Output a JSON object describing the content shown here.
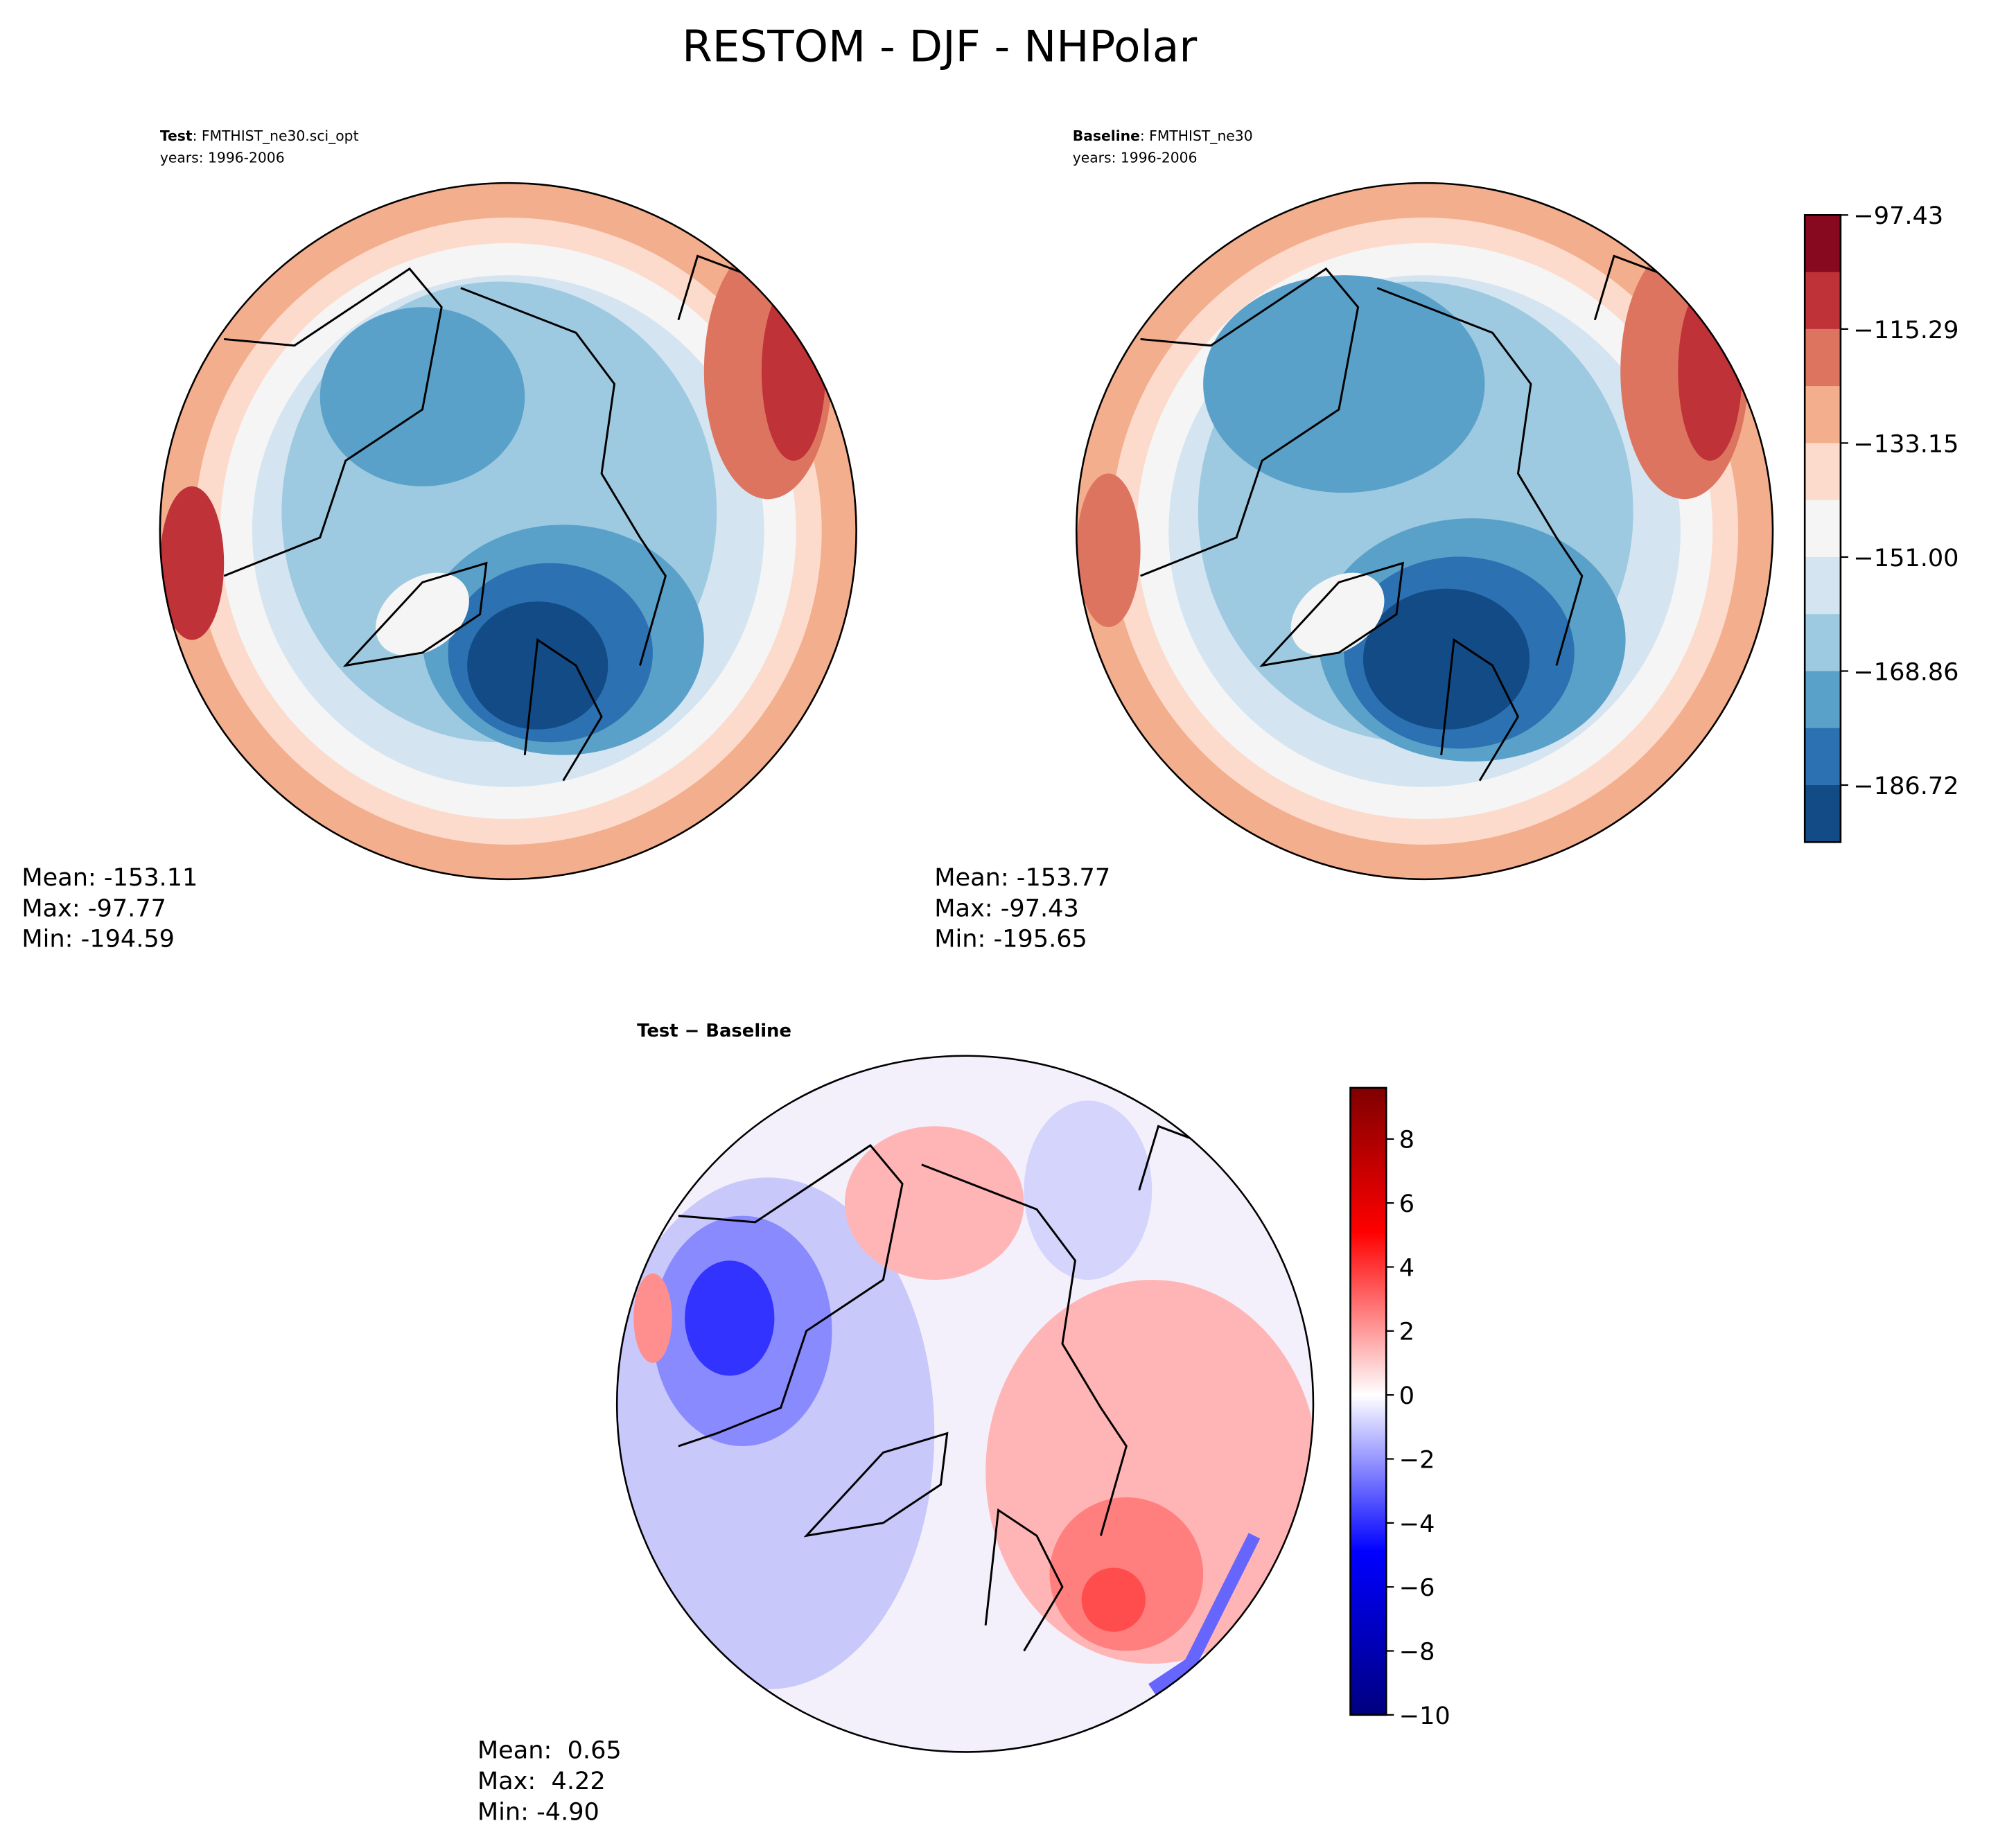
{
  "chart_data": [
    {
      "type": "heatmap",
      "projection": "north-polar-stereographic",
      "suptitle": "RESTOM - DJF - NHPolar",
      "title_bold": "Test",
      "title_rest": ": FMTHIST_ne30.sci_opt",
      "years": "years: 1996-2006",
      "stats": {
        "mean": "Mean: -153.11",
        "max": "Max: -97.77",
        "min": "Min: -194.59"
      },
      "colorbar_ticks": [
        "−97.43",
        "−115.29",
        "−133.15",
        "−151.00",
        "−168.86",
        "−186.72"
      ],
      "levels_range": [
        -204.58,
        -97.43
      ]
    },
    {
      "type": "heatmap",
      "projection": "north-polar-stereographic",
      "title_bold": "Baseline",
      "title_rest": ": FMTHIST_ne30",
      "years": "years: 1996-2006",
      "stats": {
        "mean": "Mean: -153.77",
        "max": "Max: -97.43",
        "min": "Min: -195.65"
      }
    },
    {
      "type": "heatmap",
      "projection": "north-polar-stereographic",
      "title_bold": "Test − Baseline",
      "stats": {
        "mean": "Mean:  0.65",
        "max": "Max:  4.22",
        "min": "Min: -4.90"
      },
      "colorbar_ticks": [
        "8",
        "6",
        "4",
        "2",
        "0",
        "−2",
        "−4",
        "−6",
        "−8",
        "−10"
      ],
      "tick_values": [
        8,
        6,
        4,
        2,
        0,
        -2,
        -4,
        -6,
        -8,
        -10
      ],
      "levels_range": [
        -10,
        9.6
      ]
    }
  ],
  "colors": {
    "seq": [
      "#134b86",
      "#2c72b2",
      "#5aa1ca",
      "#9ecae1",
      "#d4e5f1",
      "#f5f5f5",
      "#fcdbcc",
      "#f3ae8d",
      "#dd7460",
      "#bf3238",
      "#86091f"
    ],
    "diff": [
      "#00007f",
      "#0000ff",
      "#7f7fff",
      "#ffffff",
      "#ff7f7f",
      "#ff0000",
      "#7f0000"
    ]
  }
}
